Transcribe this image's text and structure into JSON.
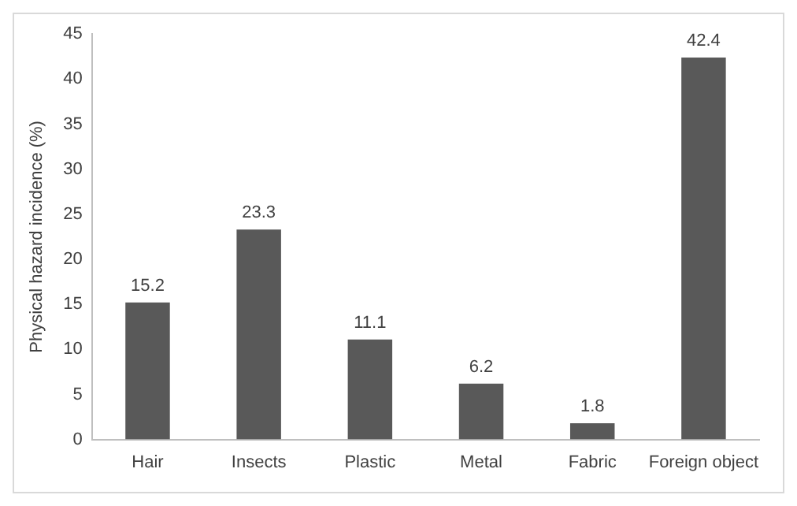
{
  "chart_data": {
    "type": "bar",
    "ylabel": "Physical hazard incidence (%)",
    "categories": [
      "Hair",
      "Insects",
      "Plastic",
      "Metal",
      "Fabric",
      "Foreign object"
    ],
    "values": [
      15.2,
      23.3,
      11.1,
      6.2,
      1.8,
      42.4
    ],
    "color": "#595959",
    "ylim": [
      0,
      45
    ],
    "yticks": [
      0,
      5,
      10,
      15,
      20,
      25,
      30,
      35,
      40,
      45
    ],
    "grid": false,
    "legend": false,
    "data_labels": true
  }
}
